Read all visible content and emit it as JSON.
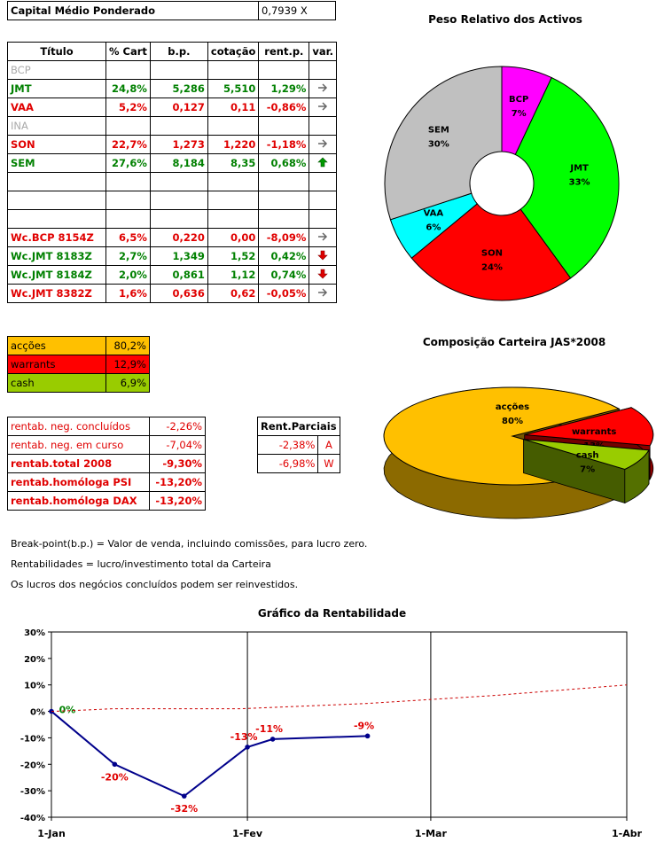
{
  "capital": {
    "label": "Capital Médio Ponderado",
    "value": "0,7939 X"
  },
  "portfolio": {
    "headers": [
      "Título",
      "% Cart",
      "b.p.",
      "cotação",
      "rent.p.",
      "var."
    ],
    "rows": [
      {
        "titulo": "BCP",
        "cart": "",
        "bp": "",
        "cot": "",
        "rent": "",
        "var": "",
        "style": "gr"
      },
      {
        "titulo": "JMT",
        "cart": "24,8%",
        "bp": "5,286",
        "cot": "5,510",
        "rent": "1,29%",
        "var": "right-arrow-icon",
        "style": "g"
      },
      {
        "titulo": "VAA",
        "cart": "5,2%",
        "bp": "0,127",
        "cot": "0,11",
        "rent": "-0,86%",
        "var": "right-arrow-icon",
        "style": "r"
      },
      {
        "titulo": "INA",
        "cart": "",
        "bp": "",
        "cot": "",
        "rent": "",
        "var": "",
        "style": "gr"
      },
      {
        "titulo": "SON",
        "cart": "22,7%",
        "bp": "1,273",
        "cot": "1,220",
        "rent": "-1,18%",
        "var": "right-arrow-icon",
        "style": "r"
      },
      {
        "titulo": "SEM",
        "cart": "27,6%",
        "bp": "8,184",
        "cot": "8,35",
        "rent": "0,68%",
        "var": "up-arrow-icon",
        "style": "g"
      },
      {
        "titulo": "",
        "cart": "",
        "bp": "",
        "cot": "",
        "rent": "",
        "var": "",
        "style": ""
      },
      {
        "titulo": "",
        "cart": "",
        "bp": "",
        "cot": "",
        "rent": "",
        "var": "",
        "style": ""
      },
      {
        "titulo": "",
        "cart": "",
        "bp": "",
        "cot": "",
        "rent": "",
        "var": "",
        "style": ""
      },
      {
        "titulo": "Wc.BCP 8154Z",
        "cart": "6,5%",
        "bp": "0,220",
        "cot": "0,00",
        "rent": "-8,09%",
        "var": "right-arrow-icon",
        "style": "r"
      },
      {
        "titulo": "Wc.JMT 8183Z",
        "cart": "2,7%",
        "bp": "1,349",
        "cot": "1,52",
        "rent": "0,42%",
        "var": "down-arrow-icon",
        "style": "g"
      },
      {
        "titulo": "Wc.JMT 8184Z",
        "cart": "2,0%",
        "bp": "0,861",
        "cot": "1,12",
        "rent": "0,74%",
        "var": "down-arrow-icon",
        "style": "g"
      },
      {
        "titulo": "Wc.JMT 8382Z",
        "cart": "1,6%",
        "bp": "0,636",
        "cot": "0,62",
        "rent": "-0,05%",
        "var": "right-arrow-icon",
        "style": "r"
      }
    ]
  },
  "composition": [
    {
      "label": "acções",
      "value": "80,2%",
      "color": "#ffc000"
    },
    {
      "label": "warrants",
      "value": "12,9%",
      "color": "#ff0000"
    },
    {
      "label": "cash",
      "value": "6,9%",
      "color": "#99cc00"
    }
  ],
  "returns": [
    {
      "label": "rentab. neg. concluídos",
      "value": "-2,26%",
      "bold": false
    },
    {
      "label": "rentab. neg. em curso",
      "value": "-7,04%",
      "bold": false
    },
    {
      "label": "rentab.total 2008",
      "value": "-9,30%",
      "bold": true
    },
    {
      "label": "rentab.homóloga PSI",
      "value": "-13,20%",
      "bold": true
    },
    {
      "label": "rentab.homóloga DAX",
      "value": "-13,20%",
      "bold": true
    }
  ],
  "partial": {
    "header": "Rent.Parciais",
    "rows": [
      {
        "value": "-2,38%",
        "tag": "A"
      },
      {
        "value": "-6,98%",
        "tag": "W"
      }
    ]
  },
  "notes": [
    "Break-point(b.p.) = Valor de venda, incluindo comissões, para lucro zero.",
    "Rentabilidades = lucro/investimento total da Carteira",
    "Os lucros dos negócios concluídos podem ser reinvestidos."
  ],
  "chart_data": [
    {
      "type": "pie",
      "title": "Peso Relativo dos Activos",
      "donut": true,
      "labels": [
        "BCP",
        "JMT",
        "SON",
        "VAA",
        "SEM"
      ],
      "values": [
        7,
        33,
        24,
        6,
        30
      ],
      "value_labels": [
        "7%",
        "33%",
        "24%",
        "6%",
        "30%"
      ],
      "colors": [
        "#ff00ff",
        "#00ff00",
        "#ff0000",
        "#00ffff",
        "#c0c0c0"
      ]
    },
    {
      "type": "pie",
      "title": "Composição Carteira JAS*2008",
      "style": "3d-exploded",
      "labels": [
        "acções",
        "warrants",
        "cash"
      ],
      "values": [
        80,
        13,
        7
      ],
      "value_labels": [
        "80%",
        "13%",
        "7%"
      ],
      "colors": [
        "#ffc000",
        "#ff0000",
        "#99cc00"
      ]
    },
    {
      "type": "line",
      "title": "Gráfico da Rentabilidade",
      "x_ticks": [
        "1-Jan",
        "1-Fev",
        "1-Mar",
        "1-Abr"
      ],
      "ylim": [
        -40,
        30
      ],
      "y_ticks": [
        "30%",
        "20%",
        "10%",
        "0%",
        "-10%",
        "-20%",
        "-30%",
        "-40%"
      ],
      "grid": "vertical at month starts",
      "series": [
        {
          "values": [
            [
              0,
              0
            ],
            [
              10,
              -20
            ],
            [
              21,
              -32
            ],
            [
              31,
              -13.5
            ],
            [
              35,
              -10.5
            ],
            [
              50,
              -9.3
            ]
          ],
          "point_labels": [
            "0%",
            "-20%",
            "-32%",
            "-13%",
            "-11%",
            "-9%"
          ],
          "color": "#00008b"
        },
        {
          "values": [
            [
              0,
              0
            ],
            [
              10,
              1
            ],
            [
              30,
              1
            ],
            [
              50,
              3
            ],
            [
              70,
              6
            ],
            [
              91,
              10
            ]
          ],
          "color": "#cc0000",
          "style": "dashed"
        }
      ]
    }
  ]
}
